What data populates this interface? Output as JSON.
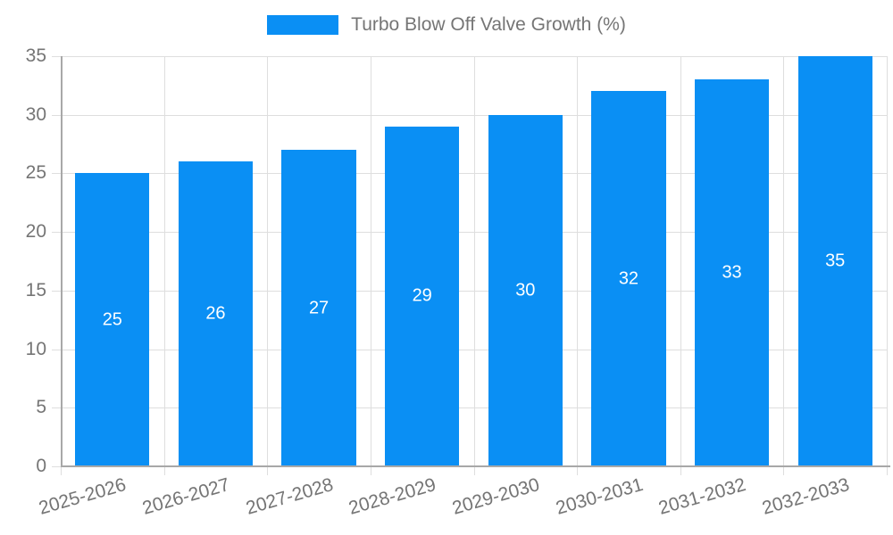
{
  "chart_data": {
    "type": "bar",
    "title": "Turbo Blow Off Valve Growth (%)",
    "categories": [
      "2025-2026",
      "2026-2027",
      "2027-2028",
      "2028-2029",
      "2029-2030",
      "2030-2031",
      "2031-2032",
      "2032-2033"
    ],
    "values": [
      25,
      26,
      27,
      29,
      30,
      32,
      33,
      35
    ],
    "bar_labels": [
      "25",
      "26",
      "27",
      "29",
      "30",
      "32",
      "33",
      "35"
    ],
    "xlabel": "",
    "ylabel": "",
    "ylim": [
      0,
      35
    ],
    "yticks": [
      0,
      5,
      10,
      15,
      20,
      25,
      30,
      35
    ],
    "grid": true,
    "legend_position": "top-center",
    "value_label_position": "center-of-bar",
    "x_label_rotation_deg": -16,
    "colors": {
      "bar": "#0a8ff4",
      "bar_label": "#ffffff",
      "grid": "#dedede",
      "axis": "#a8a8a8",
      "tick_text": "#757575",
      "background": "#ffffff"
    }
  }
}
